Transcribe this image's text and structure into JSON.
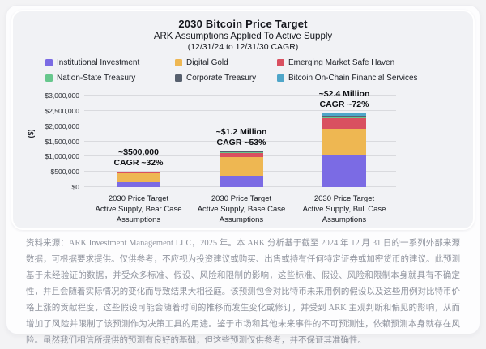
{
  "card": {
    "title": "2030 Bitcoin Price Target",
    "subtitle": "ARK Assumptions Applied To Active Supply",
    "subtitle2": "(12/31/24 to 12/31/30 CAGR)"
  },
  "chart_data": {
    "type": "bar",
    "stacked": true,
    "title": "2030 Bitcoin Price Target",
    "subtitle": "ARK Assumptions Applied To Active Supply (12/31/24 to 12/31/30 CAGR)",
    "ylabel": "($)",
    "ylim": [
      0,
      3000000
    ],
    "ytick_step": 500000,
    "yticks": [
      "$0",
      "$500,000",
      "$1,000,000",
      "$1,500,000",
      "$2,000,000",
      "$2,500,000",
      "$3,000,000"
    ],
    "grid": true,
    "legend_position": "top",
    "categories": [
      [
        "2030 Price Target",
        "Active Supply, Bear Case",
        "Assumptions"
      ],
      [
        "2030 Price Target",
        "Active Supply, Base Case",
        "Assumptions"
      ],
      [
        "2030 Price Target",
        "Active Supply, Bull Case",
        "Assumptions"
      ]
    ],
    "series": [
      {
        "name": "Institutional Investment",
        "color": "#7b6be4",
        "values": [
          150000,
          365000,
          1055000
        ]
      },
      {
        "name": "Digital Gold",
        "color": "#eeb752",
        "values": [
          290000,
          620000,
          860000
        ]
      },
      {
        "name": "Emerging Market Safe Haven",
        "color": "#d95060",
        "values": [
          45000,
          130000,
          335000
        ]
      },
      {
        "name": "Nation-State Treasury",
        "color": "#67c78d",
        "values": [
          8000,
          35000,
          70000
        ]
      },
      {
        "name": "Corporate Treasury",
        "color": "#57606e",
        "values": [
          3000,
          10000,
          25000
        ]
      },
      {
        "name": "Bitcoin On-Chain Financial Services",
        "color": "#4fa6c9",
        "values": [
          6000,
          20000,
          60000
        ]
      }
    ],
    "totals_approx": [
      500000,
      1200000,
      2400000
    ],
    "annotations": [
      {
        "value_label": "~$500,000",
        "cagr_label": "CAGR ~32%"
      },
      {
        "value_label": "~$1.2 Million",
        "cagr_label": "CAGR ~53%"
      },
      {
        "value_label": "~$2.4 Million",
        "cagr_label": "CAGR ~72%"
      }
    ]
  },
  "disclaimer": "资料来源：ARK Investment Management LLC，2025 年。本 ARK 分析基于截至 2024 年 12 月 31 日的一系列外部来源数据，可根据要求提供。仅供参考，不应视为投资建议或购买、出售或持有任何特定证券或加密货币的建议。此预测基于未经验证的数据，并受众多标准、假设、风险和限制的影响，这些标准、假设、风险和限制本身就具有不确定性，并且会随着实际情况的变化而导致结果大相径庭。该预测包含对比特币未来用例的假设以及这些用例对比特币价格上涨的贡献程度，这些假设可能会随着时间的推移而发生变化或修订，并受到 ARK 主观判断和偏见的影响，从而增加了风险并限制了该预测作为决策工具的用途。鉴于市场和其他未来事件的不可预测性，依赖预测本身就存在风险。虽然我们相信所提供的预测有良好的基础，但这些预测仅供参考，并不保证其准确性。"
}
